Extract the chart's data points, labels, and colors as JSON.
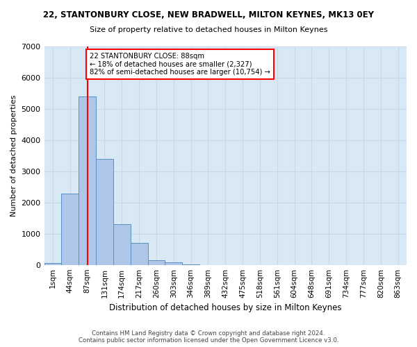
{
  "title": "22, STANTONBURY CLOSE, NEW BRADWELL, MILTON KEYNES, MK13 0EY",
  "subtitle": "Size of property relative to detached houses in Milton Keynes",
  "xlabel": "Distribution of detached houses by size in Milton Keynes",
  "ylabel": "Number of detached properties",
  "bin_labels": [
    "1sqm",
    "44sqm",
    "87sqm",
    "131sqm",
    "174sqm",
    "217sqm",
    "260sqm",
    "303sqm",
    "346sqm",
    "389sqm",
    "432sqm",
    "475sqm",
    "518sqm",
    "561sqm",
    "604sqm",
    "648sqm",
    "691sqm",
    "734sqm",
    "777sqm",
    "820sqm",
    "863sqm"
  ],
  "bar_values": [
    50,
    2280,
    5400,
    3400,
    1300,
    700,
    150,
    80,
    10,
    0,
    0,
    0,
    0,
    0,
    0,
    0,
    0,
    0,
    0,
    0,
    0
  ],
  "bar_color": "#aec6e8",
  "bar_edge_color": "#5a8fc0",
  "property_line_color": "red",
  "annotation_text": "22 STANTONBURY CLOSE: 88sqm\n← 18% of detached houses are smaller (2,327)\n82% of semi-detached houses are larger (10,754) →",
  "ylim": [
    0,
    7000
  ],
  "yticks": [
    0,
    1000,
    2000,
    3000,
    4000,
    5000,
    6000,
    7000
  ],
  "grid_color": "#c8d8e8",
  "background_color": "#d8e8f4",
  "footer_line1": "Contains HM Land Registry data © Crown copyright and database right 2024.",
  "footer_line2": "Contains public sector information licensed under the Open Government Licence v3.0."
}
